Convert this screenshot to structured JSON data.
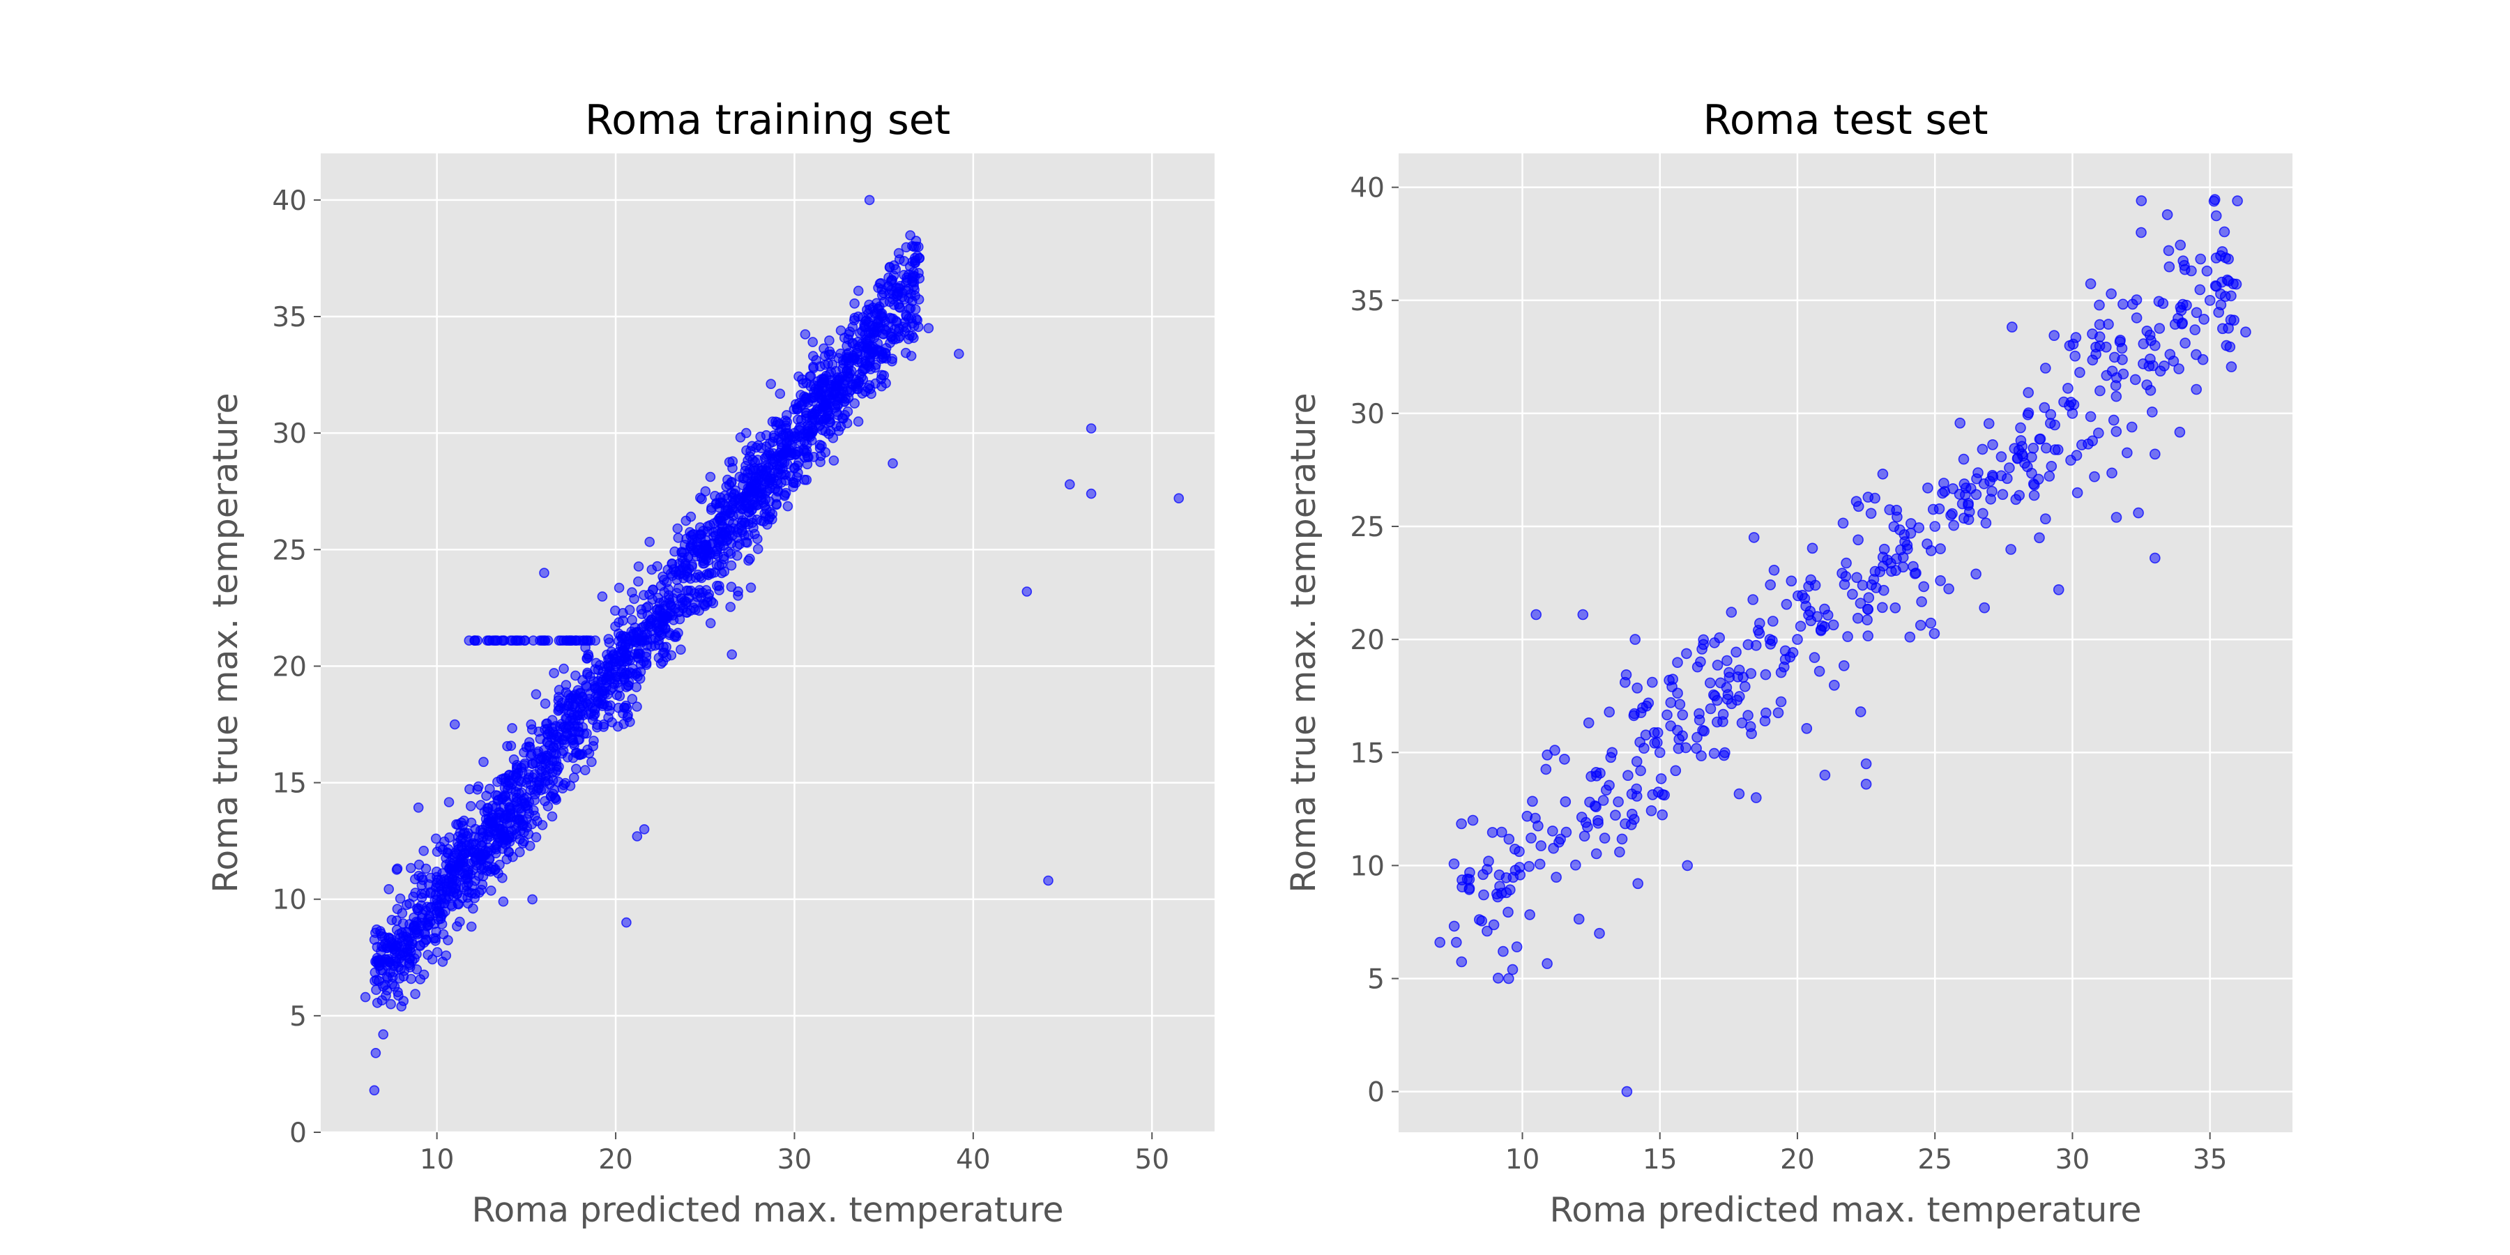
{
  "chart_data": [
    {
      "type": "scatter",
      "title": "Roma training set",
      "xlabel": "Roma predicted max. temperature",
      "ylabel": "Roma true max. temperature",
      "xlim": [
        3.5,
        53.5
      ],
      "ylim": [
        0,
        42
      ],
      "xticks": [
        10,
        20,
        30,
        40,
        50
      ],
      "yticks": [
        0,
        5,
        10,
        15,
        20,
        25,
        30,
        35,
        40
      ],
      "grid": true,
      "marker_color": "#0000ff",
      "background": "#e5e5e5",
      "approx_point_count": 2200,
      "trend": "y ≈ x, tight linear band from (6,5) to (37,37)",
      "points": [
        [
          6.5,
          1.8
        ],
        [
          6.0,
          5.8
        ],
        [
          7.0,
          4.2
        ],
        [
          8.5,
          8.0
        ],
        [
          10.0,
          9.5
        ],
        [
          12.0,
          12.0
        ],
        [
          14.0,
          13.5
        ],
        [
          16.0,
          16.0
        ],
        [
          18.0,
          18.5
        ],
        [
          20.0,
          20.0
        ],
        [
          22.0,
          22.0
        ],
        [
          24.0,
          24.0
        ],
        [
          26.0,
          26.0
        ],
        [
          28.0,
          28.0
        ],
        [
          30.0,
          30.0
        ],
        [
          32.0,
          32.0
        ],
        [
          34.0,
          34.0
        ],
        [
          34.2,
          40.0
        ],
        [
          36.8,
          38.0
        ],
        [
          37.5,
          34.5
        ],
        [
          39.2,
          33.4
        ],
        [
          35.5,
          28.7
        ],
        [
          20.6,
          9.0
        ],
        [
          21.2,
          12.7
        ],
        [
          21.6,
          13.0
        ],
        [
          26.5,
          20.5
        ],
        [
          11.0,
          17.5
        ],
        [
          11.8,
          21.1
        ],
        [
          16.0,
          24.0
        ],
        [
          43.0,
          23.2
        ],
        [
          44.2,
          10.8
        ],
        [
          45.4,
          27.8
        ],
        [
          46.6,
          27.4
        ],
        [
          46.6,
          30.2
        ],
        [
          51.5,
          27.2
        ]
      ]
    },
    {
      "type": "scatter",
      "title": "Roma test set",
      "xlabel": "Roma predicted max. temperature",
      "ylabel": "Roma true max. temperature",
      "xlim": [
        5.5,
        38.0
      ],
      "ylim": [
        -1.8,
        41.5
      ],
      "xticks": [
        10,
        15,
        20,
        25,
        30,
        35
      ],
      "yticks": [
        0,
        5,
        10,
        15,
        20,
        25,
        30,
        35,
        40
      ],
      "grid": true,
      "marker_color": "#0000ff",
      "background": "#e5e5e5",
      "approx_point_count": 500,
      "trend": "y ≈ x, wider linear band from (7,6.5) to (36,39)",
      "points": [
        [
          7.0,
          6.6
        ],
        [
          7.6,
          6.6
        ],
        [
          8.0,
          9.4
        ],
        [
          8.2,
          12.0
        ],
        [
          9.3,
          6.2
        ],
        [
          9.5,
          5.0
        ],
        [
          9.8,
          6.4
        ],
        [
          10.5,
          21.1
        ],
        [
          12.2,
          21.1
        ],
        [
          12.8,
          7.0
        ],
        [
          13.8,
          0.0
        ],
        [
          14.2,
          9.2
        ],
        [
          14.1,
          20.0
        ],
        [
          15.0,
          15.0
        ],
        [
          16.0,
          10.0
        ],
        [
          17.0,
          17.5
        ],
        [
          18.5,
          13.0
        ],
        [
          19.0,
          20.0
        ],
        [
          20.0,
          20.0
        ],
        [
          21.0,
          14.0
        ],
        [
          22.0,
          22.0
        ],
        [
          22.3,
          16.8
        ],
        [
          22.5,
          13.6
        ],
        [
          22.5,
          14.5
        ],
        [
          23.0,
          23.0
        ],
        [
          24.0,
          24.0
        ],
        [
          25.0,
          25.0
        ],
        [
          25.2,
          22.6
        ],
        [
          26.0,
          26.0
        ],
        [
          26.8,
          21.4
        ],
        [
          27.0,
          27.0
        ],
        [
          28.0,
          28.0
        ],
        [
          29.5,
          22.2
        ],
        [
          30.0,
          30.0
        ],
        [
          30.8,
          27.2
        ],
        [
          31.0,
          31.0
        ],
        [
          31.6,
          25.4
        ],
        [
          32.4,
          25.6
        ],
        [
          32.5,
          38.0
        ],
        [
          33.0,
          33.0
        ],
        [
          33.0,
          23.6
        ],
        [
          33.0,
          28.2
        ],
        [
          33.5,
          37.2
        ],
        [
          34.0,
          34.0
        ],
        [
          34.5,
          32.6
        ],
        [
          35.0,
          35.0
        ],
        [
          35.4,
          34.8
        ],
        [
          35.6,
          33.0
        ],
        [
          36.0,
          39.4
        ],
        [
          36.3,
          33.6
        ]
      ]
    }
  ]
}
